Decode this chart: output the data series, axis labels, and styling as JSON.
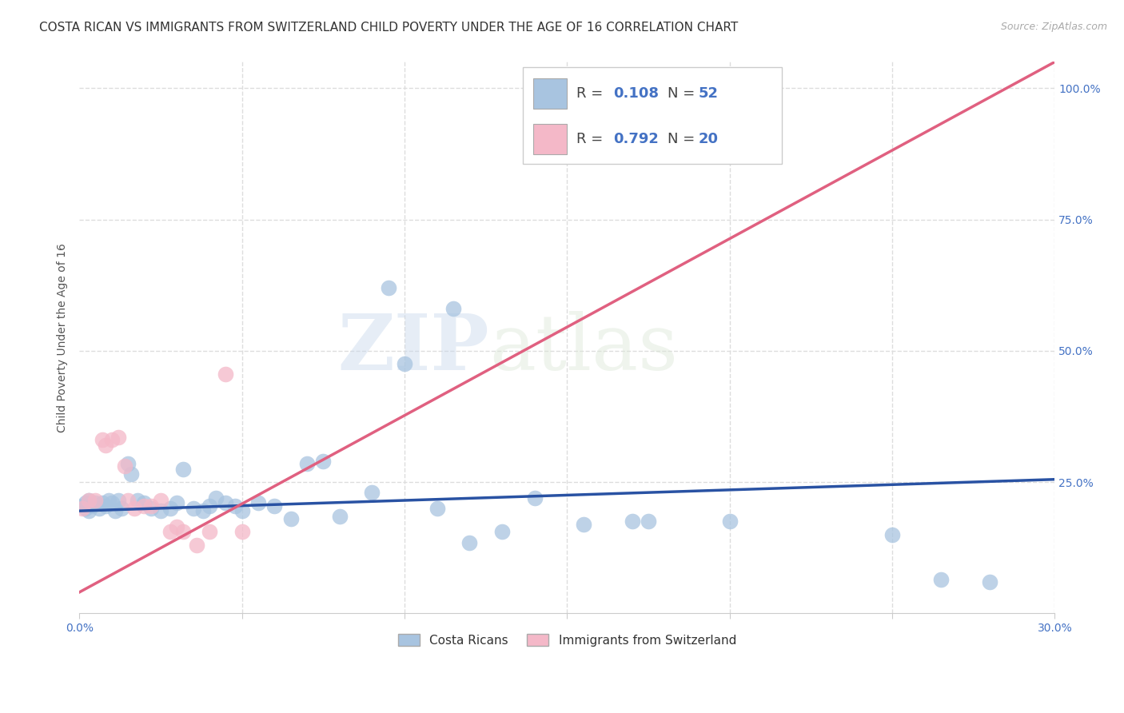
{
  "title": "COSTA RICAN VS IMMIGRANTS FROM SWITZERLAND CHILD POVERTY UNDER THE AGE OF 16 CORRELATION CHART",
  "source": "Source: ZipAtlas.com",
  "ylabel": "Child Poverty Under the Age of 16",
  "xlim": [
    0.0,
    0.3
  ],
  "ylim": [
    0.0,
    1.05
  ],
  "blue_color": "#a8c4e0",
  "blue_line_color": "#2952a3",
  "pink_color": "#f4b8c8",
  "pink_line_color": "#e06080",
  "legend_label1": "Costa Ricans",
  "legend_label2": "Immigrants from Switzerland",
  "watermark": "ZIPatlas",
  "blue_r": 0.108,
  "blue_n": 52,
  "pink_r": 0.792,
  "pink_n": 20,
  "blue_scatter_x": [
    0.001,
    0.002,
    0.002,
    0.003,
    0.003,
    0.004,
    0.005,
    0.006,
    0.007,
    0.008,
    0.009,
    0.01,
    0.011,
    0.012,
    0.013,
    0.015,
    0.016,
    0.018,
    0.02,
    0.022,
    0.025,
    0.028,
    0.03,
    0.032,
    0.035,
    0.038,
    0.04,
    0.042,
    0.045,
    0.048,
    0.05,
    0.055,
    0.06,
    0.065,
    0.07,
    0.075,
    0.08,
    0.09,
    0.1,
    0.11,
    0.12,
    0.13,
    0.14,
    0.155,
    0.17,
    0.095,
    0.115,
    0.175,
    0.2,
    0.25,
    0.265,
    0.28
  ],
  "blue_scatter_y": [
    0.205,
    0.21,
    0.2,
    0.215,
    0.195,
    0.205,
    0.21,
    0.2,
    0.21,
    0.205,
    0.215,
    0.21,
    0.195,
    0.215,
    0.2,
    0.285,
    0.265,
    0.215,
    0.21,
    0.2,
    0.195,
    0.2,
    0.21,
    0.275,
    0.2,
    0.195,
    0.205,
    0.22,
    0.21,
    0.205,
    0.195,
    0.21,
    0.205,
    0.18,
    0.285,
    0.29,
    0.185,
    0.23,
    0.475,
    0.2,
    0.135,
    0.155,
    0.22,
    0.17,
    0.175,
    0.62,
    0.58,
    0.175,
    0.175,
    0.15,
    0.065,
    0.06
  ],
  "pink_scatter_x": [
    0.001,
    0.003,
    0.005,
    0.007,
    0.008,
    0.01,
    0.012,
    0.014,
    0.015,
    0.017,
    0.02,
    0.022,
    0.025,
    0.028,
    0.03,
    0.032,
    0.036,
    0.04,
    0.045,
    0.05
  ],
  "pink_scatter_y": [
    0.2,
    0.215,
    0.215,
    0.33,
    0.32,
    0.33,
    0.335,
    0.28,
    0.215,
    0.2,
    0.205,
    0.205,
    0.215,
    0.155,
    0.165,
    0.155,
    0.13,
    0.155,
    0.455,
    0.155
  ],
  "pink_line_x0": 0.0,
  "pink_line_y0": 0.04,
  "pink_line_x1": 0.3,
  "pink_line_y1": 1.05,
  "blue_line_x0": 0.0,
  "blue_line_y0": 0.195,
  "blue_line_x1": 0.3,
  "blue_line_y1": 0.255,
  "dot_size": 200,
  "title_fontsize": 11,
  "axis_label_fontsize": 10,
  "tick_fontsize": 10,
  "background_color": "#ffffff",
  "grid_color": "#dddddd"
}
